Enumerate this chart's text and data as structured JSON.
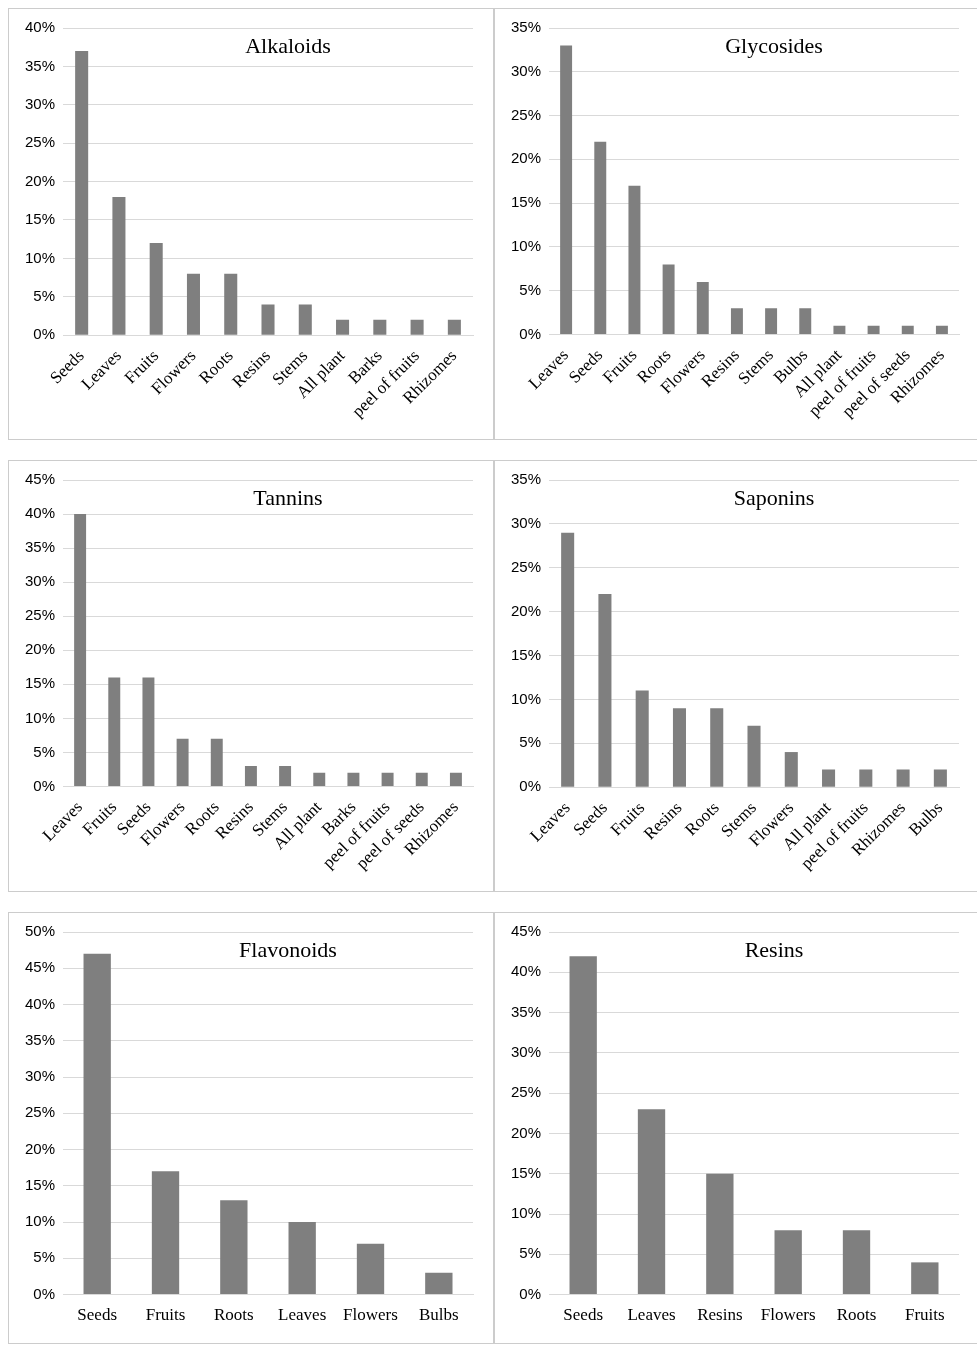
{
  "chart_data": [
    {
      "type": "bar",
      "title": "Alkaloids",
      "categories": [
        "Seeds",
        "Leaves",
        "Fruits",
        "Flowers",
        "Roots",
        "Resins",
        "Stems",
        "All plant",
        "Barks",
        "peel of fruits",
        "Rhizomes"
      ],
      "values": [
        37,
        18,
        12,
        8,
        8,
        4,
        4,
        2,
        2,
        2,
        2
      ],
      "color": "#7f7f7f",
      "ylim": [
        0,
        40
      ],
      "yticks": [
        {
          "value": 0,
          "label": "0%"
        },
        {
          "value": 5,
          "label": "5%"
        },
        {
          "value": 10,
          "label": "10%"
        },
        {
          "value": 15,
          "label": "15%"
        },
        {
          "value": 20,
          "label": "20%"
        },
        {
          "value": 25,
          "label": "25%"
        },
        {
          "value": 30,
          "label": "30%"
        },
        {
          "value": 35,
          "label": "35%"
        },
        {
          "value": 40,
          "label": "40%"
        }
      ],
      "grid": "y",
      "legend": false
    },
    {
      "type": "bar",
      "title": "Glycosides",
      "categories": [
        "Leaves",
        "Seeds",
        "Fruits",
        "Roots",
        "Flowers",
        "Resins",
        "Stems",
        "Bulbs",
        "All plant",
        "peel of fruits",
        "peel of seeds",
        "Rhizomes"
      ],
      "values": [
        33,
        22,
        17,
        8,
        6,
        3,
        3,
        3,
        1,
        1,
        1,
        1
      ],
      "color": "#7f7f7f",
      "ylim": [
        0,
        35
      ],
      "yticks": [
        {
          "value": 0,
          "label": "0%"
        },
        {
          "value": 5,
          "label": "5%"
        },
        {
          "value": 10,
          "label": "10%"
        },
        {
          "value": 15,
          "label": "15%"
        },
        {
          "value": 20,
          "label": "20%"
        },
        {
          "value": 25,
          "label": "25%"
        },
        {
          "value": 30,
          "label": "30%"
        },
        {
          "value": 35,
          "label": "35%"
        }
      ],
      "grid": "y",
      "legend": false
    },
    {
      "type": "bar",
      "title": "Tannins",
      "categories": [
        "Leaves",
        "Fruits",
        "Seeds",
        "Flowers",
        "Roots",
        "Resins",
        "Stems",
        "All plant",
        "Barks",
        "peel of fruits",
        "peel of seeds",
        "Rhizomes"
      ],
      "values": [
        40,
        16,
        16,
        7,
        7,
        3,
        3,
        2,
        2,
        2,
        2,
        2
      ],
      "color": "#7f7f7f",
      "ylim": [
        0,
        45
      ],
      "yticks": [
        {
          "value": 0,
          "label": "0%"
        },
        {
          "value": 5,
          "label": "5%"
        },
        {
          "value": 10,
          "label": "10%"
        },
        {
          "value": 15,
          "label": "15%"
        },
        {
          "value": 20,
          "label": "20%"
        },
        {
          "value": 25,
          "label": "25%"
        },
        {
          "value": 30,
          "label": "30%"
        },
        {
          "value": 35,
          "label": "35%"
        },
        {
          "value": 40,
          "label": "40%"
        },
        {
          "value": 45,
          "label": "45%"
        }
      ],
      "grid": "y",
      "legend": false
    },
    {
      "type": "bar",
      "title": "Saponins",
      "categories": [
        "Leaves",
        "Seeds",
        "Fruits",
        "Resins",
        "Roots",
        "Stems",
        "Flowers",
        "All plant",
        "peel of fruits",
        "Rhizomes",
        "Bulbs"
      ],
      "values": [
        29,
        22,
        11,
        9,
        9,
        7,
        4,
        2,
        2,
        2,
        2
      ],
      "color": "#7f7f7f",
      "ylim": [
        0,
        35
      ],
      "yticks": [
        {
          "value": 0,
          "label": "0%"
        },
        {
          "value": 5,
          "label": "5%"
        },
        {
          "value": 10,
          "label": "10%"
        },
        {
          "value": 15,
          "label": "15%"
        },
        {
          "value": 20,
          "label": "20%"
        },
        {
          "value": 25,
          "label": "25%"
        },
        {
          "value": 30,
          "label": "30%"
        },
        {
          "value": 35,
          "label": "35%"
        }
      ],
      "grid": "y",
      "legend": false
    },
    {
      "type": "bar",
      "title": "Flavonoids",
      "categories": [
        "Seeds",
        "Fruits",
        "Roots",
        "Leaves",
        "Flowers",
        "Bulbs"
      ],
      "values": [
        47,
        17,
        13,
        10,
        7,
        3
      ],
      "color": "#7f7f7f",
      "ylim": [
        0,
        50
      ],
      "yticks": [
        {
          "value": 0,
          "label": "0%"
        },
        {
          "value": 5,
          "label": "5%"
        },
        {
          "value": 10,
          "label": "10%"
        },
        {
          "value": 15,
          "label": "15%"
        },
        {
          "value": 20,
          "label": "20%"
        },
        {
          "value": 25,
          "label": "25%"
        },
        {
          "value": 30,
          "label": "30%"
        },
        {
          "value": 35,
          "label": "35%"
        },
        {
          "value": 40,
          "label": "40%"
        },
        {
          "value": 45,
          "label": "45%"
        },
        {
          "value": 50,
          "label": "50%"
        }
      ],
      "grid": "y",
      "legend": false
    },
    {
      "type": "bar",
      "title": "Resins",
      "categories": [
        "Seeds",
        "Leaves",
        "Resins",
        "Flowers",
        "Roots",
        "Fruits"
      ],
      "values": [
        42,
        23,
        15,
        8,
        8,
        4
      ],
      "color": "#7f7f7f",
      "ylim": [
        0,
        45
      ],
      "yticks": [
        {
          "value": 0,
          "label": "0%"
        },
        {
          "value": 5,
          "label": "5%"
        },
        {
          "value": 10,
          "label": "10%"
        },
        {
          "value": 15,
          "label": "15%"
        },
        {
          "value": 20,
          "label": "20%"
        },
        {
          "value": 25,
          "label": "25%"
        },
        {
          "value": 30,
          "label": "30%"
        },
        {
          "value": 35,
          "label": "35%"
        },
        {
          "value": 40,
          "label": "40%"
        },
        {
          "value": 45,
          "label": "45%"
        }
      ],
      "grid": "y",
      "legend": false
    }
  ]
}
